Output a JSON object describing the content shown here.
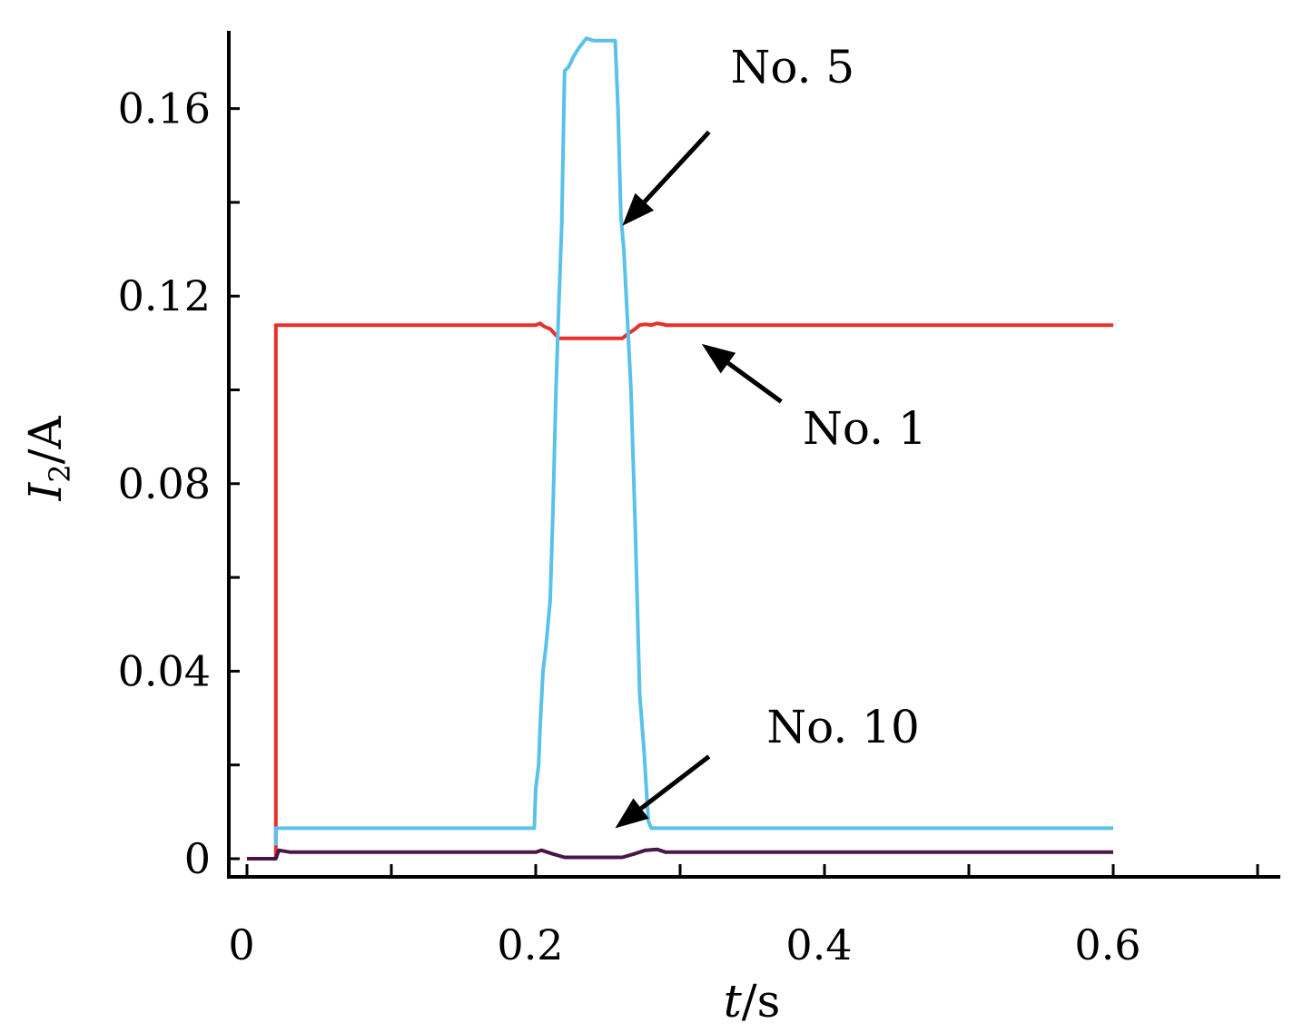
{
  "chart_data": {
    "type": "line",
    "xlabel": {
      "italic": "t",
      "rest": "/s"
    },
    "ylabel": {
      "italic": "I",
      "sub": "2",
      "rest": "/A"
    },
    "xlim": [
      0,
      0.7
    ],
    "ylim": [
      0,
      0.176
    ],
    "x_ticks": [
      0,
      0.1,
      0.2,
      0.3,
      0.4,
      0.5,
      0.6,
      0.7
    ],
    "x_tick_labels": [
      {
        "value": 0,
        "label": "0"
      },
      {
        "value": 0.2,
        "label": "0.2"
      },
      {
        "value": 0.4,
        "label": "0.4"
      },
      {
        "value": 0.6,
        "label": "0.6"
      }
    ],
    "y_ticks": [
      0,
      0.02,
      0.04,
      0.06,
      0.08,
      0.1,
      0.12,
      0.14,
      0.16
    ],
    "y_tick_labels": [
      {
        "value": 0,
        "label": "0"
      },
      {
        "value": 0.04,
        "label": "0.04"
      },
      {
        "value": 0.08,
        "label": "0.08"
      },
      {
        "value": 0.12,
        "label": "0.12"
      },
      {
        "value": 0.16,
        "label": "0.16"
      }
    ],
    "grid": false,
    "legend": "none",
    "series": [
      {
        "color": "#e8302a",
        "points": [
          [
            0.02,
            0.0
          ],
          [
            0.02,
            0.1138
          ],
          [
            0.2,
            0.1138
          ],
          [
            0.203,
            0.1142
          ],
          [
            0.206,
            0.1135
          ],
          [
            0.21,
            0.113
          ],
          [
            0.213,
            0.112
          ],
          [
            0.216,
            0.111
          ],
          [
            0.26,
            0.111
          ],
          [
            0.264,
            0.112
          ],
          [
            0.268,
            0.1128
          ],
          [
            0.272,
            0.1138
          ],
          [
            0.276,
            0.114
          ],
          [
            0.28,
            0.1138
          ],
          [
            0.284,
            0.1142
          ],
          [
            0.288,
            0.114
          ],
          [
            0.29,
            0.1138
          ],
          [
            0.6,
            0.1138
          ]
        ]
      },
      {
        "color": "#59c1ea",
        "points": [
          [
            0.02,
            0.0028
          ],
          [
            0.02,
            0.0065
          ],
          [
            0.199,
            0.0065
          ],
          [
            0.2,
            0.015
          ],
          [
            0.202,
            0.02
          ],
          [
            0.203,
            0.028
          ],
          [
            0.205,
            0.04
          ],
          [
            0.207,
            0.045
          ],
          [
            0.21,
            0.055
          ],
          [
            0.212,
            0.075
          ],
          [
            0.214,
            0.1
          ],
          [
            0.216,
            0.118
          ],
          [
            0.218,
            0.135
          ],
          [
            0.22,
            0.168
          ],
          [
            0.223,
            0.169
          ],
          [
            0.226,
            0.171
          ],
          [
            0.23,
            0.173
          ],
          [
            0.235,
            0.175
          ],
          [
            0.24,
            0.1745
          ],
          [
            0.255,
            0.1745
          ],
          [
            0.257,
            0.16
          ],
          [
            0.259,
            0.137
          ],
          [
            0.261,
            0.13
          ],
          [
            0.263,
            0.118
          ],
          [
            0.266,
            0.1
          ],
          [
            0.269,
            0.07
          ],
          [
            0.272,
            0.035
          ],
          [
            0.275,
            0.023
          ],
          [
            0.278,
            0.008
          ],
          [
            0.28,
            0.0065
          ],
          [
            0.6,
            0.0065
          ]
        ]
      },
      {
        "color": "#4a1647",
        "points": [
          [
            0.0,
            0.0
          ],
          [
            0.02,
            0.0
          ],
          [
            0.022,
            0.0018
          ],
          [
            0.03,
            0.0014
          ],
          [
            0.2,
            0.0014
          ],
          [
            0.204,
            0.0018
          ],
          [
            0.212,
            0.001
          ],
          [
            0.22,
            0.0003
          ],
          [
            0.26,
            0.0003
          ],
          [
            0.268,
            0.001
          ],
          [
            0.276,
            0.0018
          ],
          [
            0.284,
            0.002
          ],
          [
            0.29,
            0.0014
          ],
          [
            0.6,
            0.0014
          ]
        ]
      }
    ],
    "annotations": [
      {
        "text": "No. 5",
        "text_at": [
          0.335,
          0.1655
        ],
        "arrow_from": [
          0.32,
          0.155
        ],
        "arrow_to": [
          0.26,
          0.135
        ]
      },
      {
        "text": "No. 1",
        "text_at": [
          0.385,
          0.0885
        ],
        "arrow_from": [
          0.37,
          0.0975
        ],
        "arrow_to": [
          0.315,
          0.1098
        ]
      },
      {
        "text": "No. 10",
        "text_at": [
          0.36,
          0.0248
        ],
        "arrow_from": [
          0.32,
          0.0218
        ],
        "arrow_to": [
          0.255,
          0.0065
        ]
      }
    ]
  }
}
